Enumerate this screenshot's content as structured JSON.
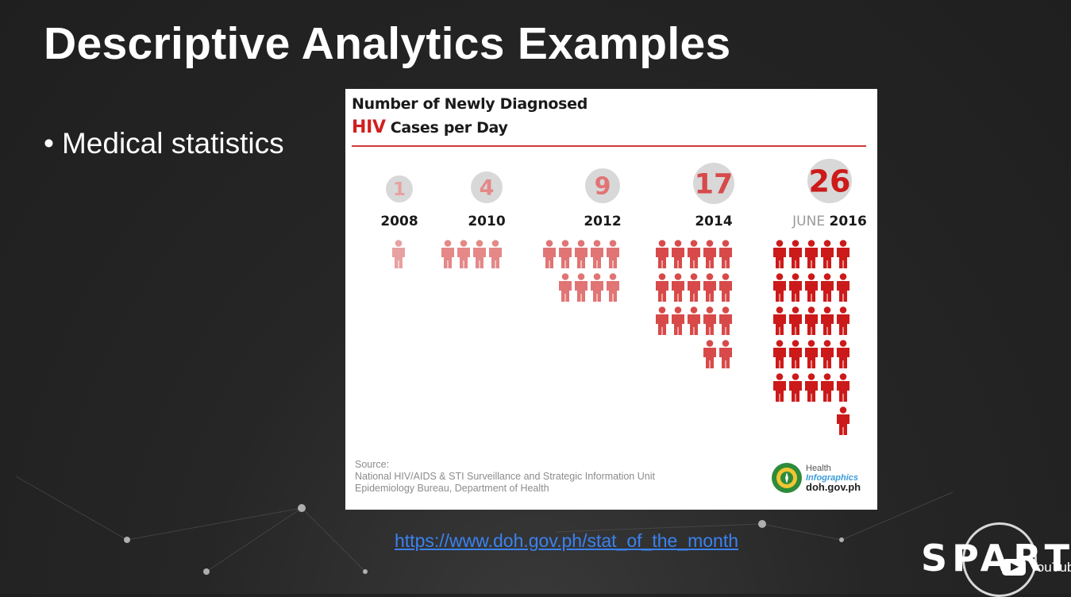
{
  "slide": {
    "title": "Descriptive Analytics Examples",
    "bullet": "Medical statistics",
    "link": "https://www.doh.gov.ph/stat_of_the_month"
  },
  "infographic": {
    "title_line1": "Number of Newly Diagnosed",
    "title_hiv": "HIV",
    "title_rest": "Cases per Day",
    "source_label": "Source:",
    "source_line1": "National HIV/AIDS & STI Surveillance and Strategic Information Unit",
    "source_line2": "Epidemiology Bureau, Department of Health",
    "logo_line1": "Health",
    "logo_line2": "Infographics",
    "logo_line3": "doh.gov.ph"
  },
  "branding": {
    "sparta": "SPARTA",
    "youtube": "YouTube"
  },
  "chart_data": {
    "type": "bar",
    "title": "Number of Newly Diagnosed HIV Cases per Day",
    "categories": [
      "2008",
      "2010",
      "2012",
      "2014",
      "JUNE 2016"
    ],
    "category_prefixes": [
      "",
      "",
      "",
      "",
      "JUNE"
    ],
    "category_years": [
      "2008",
      "2010",
      "2012",
      "2014",
      "2016"
    ],
    "values": [
      1,
      4,
      9,
      17,
      26
    ],
    "colors": [
      "#e8a0a0",
      "#e48888",
      "#e17474",
      "#d84a4a",
      "#cc1a1a"
    ],
    "bubble_colors": [
      "#d8d8d8",
      "#d8d8d8",
      "#d8d8d8",
      "#d8d8d8",
      "#d8d8d8"
    ],
    "icon": "person-icon",
    "icons_per_row": 5
  }
}
